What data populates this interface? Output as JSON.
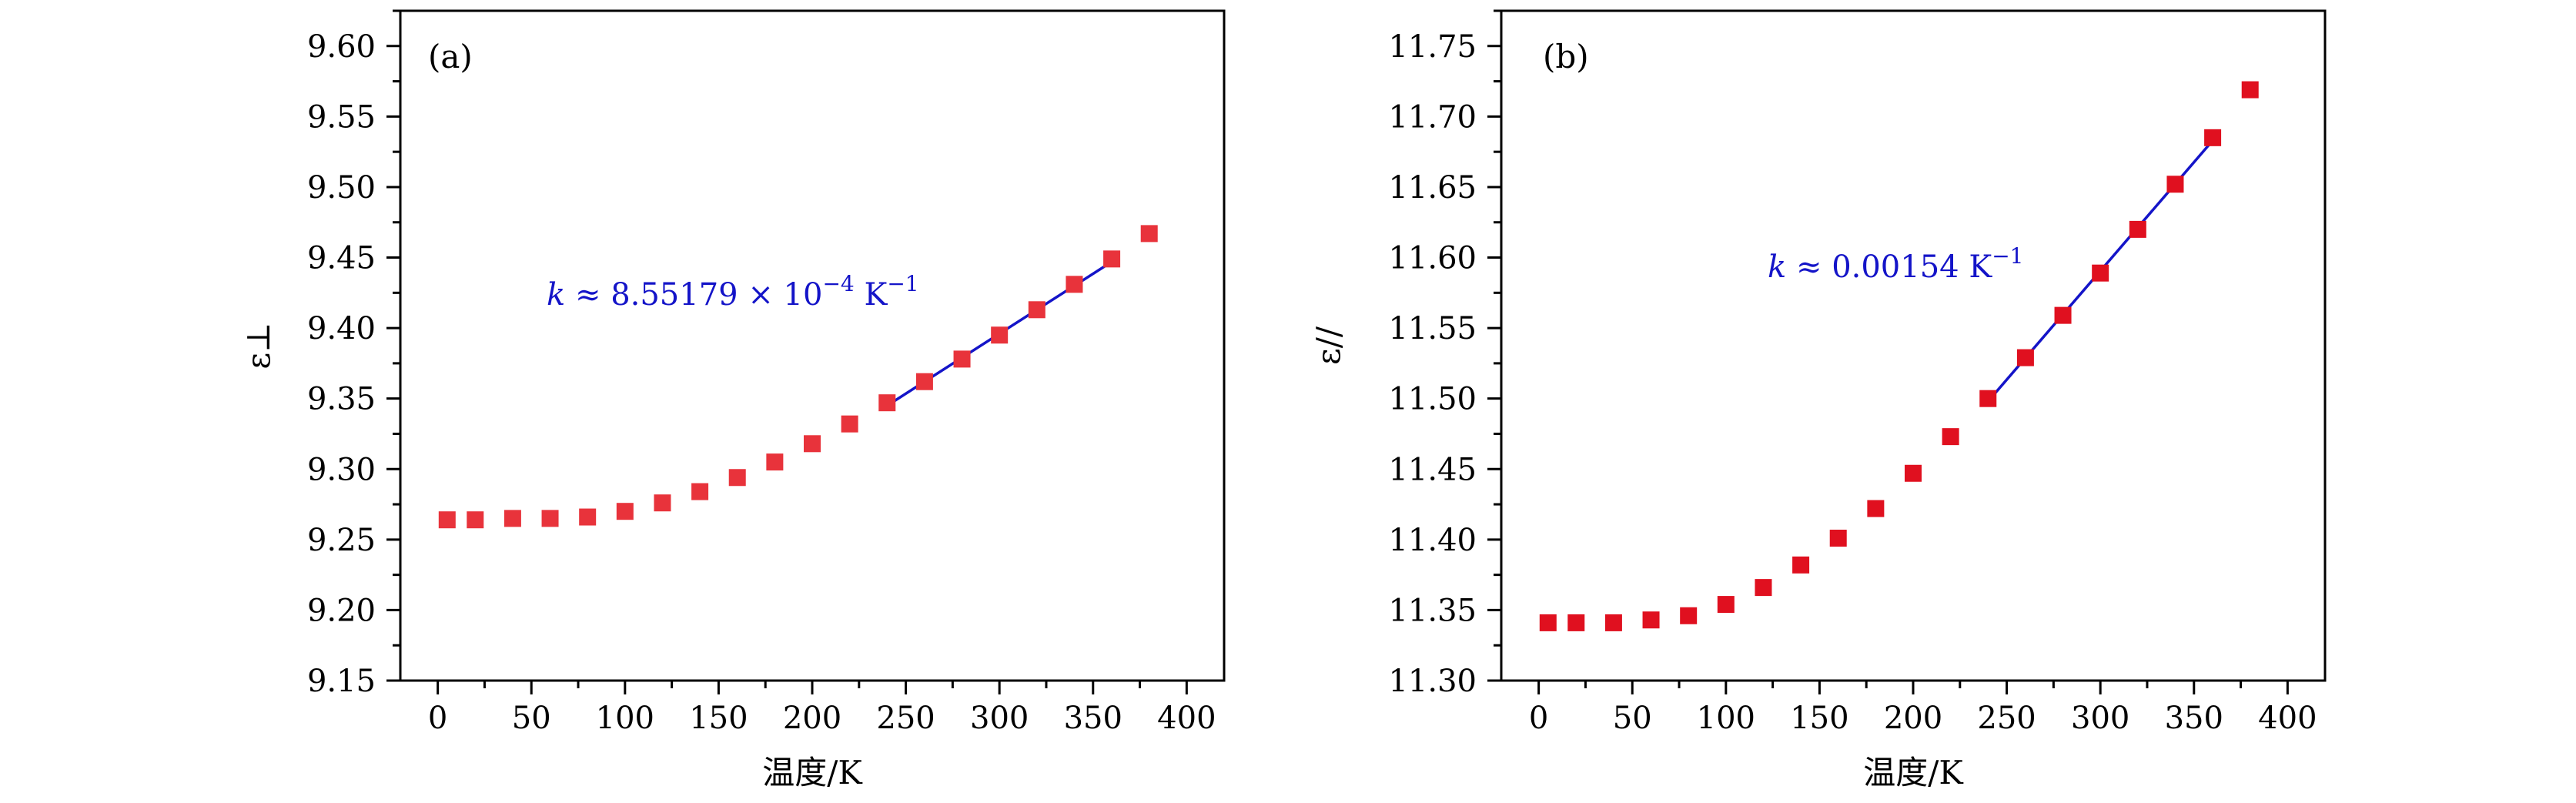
{
  "chart_data": [
    {
      "type": "scatter",
      "panel_label": "(a)",
      "xlabel": "温度/K",
      "ylabel": "ε⊥",
      "xlim": [
        -20,
        420
      ],
      "ylim": [
        9.15,
        9.625
      ],
      "xticks": [
        0,
        50,
        100,
        150,
        200,
        250,
        300,
        350,
        400
      ],
      "yticks": [
        9.15,
        9.2,
        9.25,
        9.3,
        9.35,
        9.4,
        9.45,
        9.5,
        9.55,
        9.6
      ],
      "marker_color": "#e8333b",
      "fit_color": "#1414c8",
      "x": [
        5,
        20,
        40,
        60,
        80,
        100,
        120,
        140,
        160,
        180,
        200,
        220,
        240,
        260,
        280,
        300,
        320,
        340,
        360,
        380
      ],
      "y": [
        9.264,
        9.264,
        9.265,
        9.265,
        9.266,
        9.27,
        9.276,
        9.284,
        9.294,
        9.305,
        9.318,
        9.332,
        9.347,
        9.362,
        9.378,
        9.395,
        9.413,
        9.431,
        9.449,
        9.467
      ],
      "fit_line": {
        "x": [
          240,
          360
        ],
        "y": [
          9.345,
          9.447
        ]
      },
      "annotation": {
        "var": "k",
        "text": " ≈ 8.55179 × 10",
        "exp": "−4",
        "unit": " K",
        "unit_exp": "−1"
      }
    },
    {
      "type": "scatter",
      "panel_label": "(b)",
      "xlabel": "温度/K",
      "ylabel": "ε//",
      "xlim": [
        -20,
        420
      ],
      "ylim": [
        11.3,
        11.775
      ],
      "xticks": [
        0,
        50,
        100,
        150,
        200,
        250,
        300,
        350,
        400
      ],
      "yticks": [
        11.3,
        11.35,
        11.4,
        11.45,
        11.5,
        11.55,
        11.6,
        11.65,
        11.7,
        11.75
      ],
      "marker_color": "#e0101f",
      "fit_color": "#1414c8",
      "x": [
        5,
        20,
        40,
        60,
        80,
        100,
        120,
        140,
        160,
        180,
        200,
        220,
        240,
        260,
        280,
        300,
        320,
        340,
        360,
        380
      ],
      "y": [
        11.341,
        11.341,
        11.341,
        11.343,
        11.346,
        11.354,
        11.366,
        11.382,
        11.401,
        11.422,
        11.447,
        11.473,
        11.5,
        11.529,
        11.559,
        11.589,
        11.62,
        11.652,
        11.685,
        11.719
      ],
      "fit_line": {
        "x": [
          240,
          360
        ],
        "y": [
          11.498,
          11.683
        ]
      },
      "annotation": {
        "var": "k",
        "text": " ≈ 0.00154 K",
        "exp": "",
        "unit": "",
        "unit_exp": "−1"
      }
    }
  ]
}
